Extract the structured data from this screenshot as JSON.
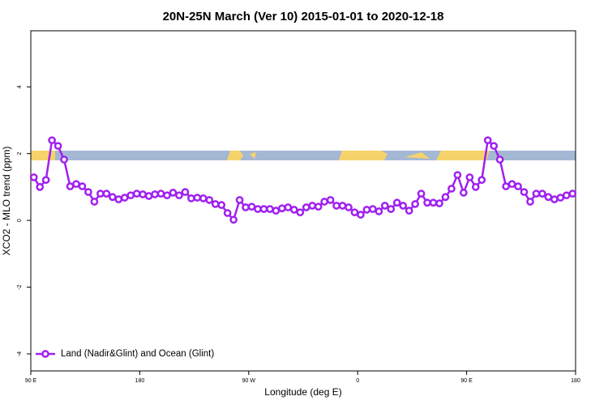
{
  "chart_data": {
    "type": "line",
    "title": "20N-25N March (Ver 10)   2015-01-01 to 2020-12-18",
    "x_label": "Longitude (deg E)",
    "y_label": "XCO2 - MLO trend (ppm)",
    "xlim": [
      90,
      540
    ],
    "xticks": [
      {
        "value": 90,
        "label": "90 E"
      },
      {
        "value": 180,
        "label": "180"
      },
      {
        "value": 270,
        "label": "90 W"
      },
      {
        "value": 360,
        "label": "0"
      },
      {
        "value": 450,
        "label": "90 E"
      },
      {
        "value": 540,
        "label": "180"
      }
    ],
    "ylim": [
      -4.51,
      5.68
    ],
    "yticks": [
      -4,
      -2,
      0,
      2,
      4
    ],
    "legend_position": "bottom-left",
    "x": [
      92.5,
      97.5,
      102.5,
      107.5,
      112.5,
      117.5,
      122.5,
      127.5,
      132.5,
      137.5,
      142.5,
      147.5,
      152.5,
      157.5,
      162.5,
      167.5,
      172.5,
      177.5,
      182.5,
      187.5,
      192.5,
      197.5,
      202.5,
      207.5,
      212.5,
      217.5,
      222.5,
      227.5,
      232.5,
      237.5,
      242.5,
      247.5,
      252.5,
      257.5,
      262.5,
      267.5,
      272.5,
      277.5,
      282.5,
      287.5,
      292.5,
      297.5,
      302.5,
      307.5,
      312.5,
      317.5,
      322.5,
      327.5,
      332.5,
      337.5,
      342.5,
      347.5,
      352.5,
      357.5,
      362.5,
      367.5,
      372.5,
      377.5,
      382.5,
      387.5,
      392.5,
      397.5,
      402.5,
      407.5,
      412.5,
      417.5,
      422.5,
      427.5,
      432.5,
      437.5,
      442.5,
      447.5,
      452.5,
      457.5,
      462.5,
      467.5,
      472.5,
      477.5,
      482.5,
      487.5,
      492.5,
      497.5,
      502.5,
      507.5,
      512.5,
      517.5,
      522.5,
      527.5,
      532.5,
      537.5
    ],
    "series": [
      {
        "name": "Land (Nadir&Glint) and Ocean (Glint)",
        "color": "#a020f0",
        "values": [
          1.29,
          1.0,
          1.21,
          2.4,
          2.23,
          1.82,
          1.02,
          1.09,
          1.02,
          0.85,
          0.56,
          0.8,
          0.8,
          0.7,
          0.63,
          0.68,
          0.75,
          0.8,
          0.78,
          0.73,
          0.78,
          0.8,
          0.75,
          0.83,
          0.75,
          0.85,
          0.66,
          0.68,
          0.66,
          0.61,
          0.49,
          0.46,
          0.22,
          0.02,
          0.61,
          0.39,
          0.41,
          0.34,
          0.34,
          0.34,
          0.29,
          0.36,
          0.39,
          0.32,
          0.24,
          0.39,
          0.44,
          0.41,
          0.56,
          0.61,
          0.44,
          0.44,
          0.39,
          0.24,
          0.17,
          0.32,
          0.34,
          0.27,
          0.44,
          0.34,
          0.53,
          0.44,
          0.29,
          0.49,
          0.8,
          0.53,
          0.53,
          0.51,
          0.7,
          0.95,
          1.36,
          0.83,
          1.29,
          1.0,
          1.21,
          2.4,
          2.23,
          1.82,
          1.02,
          1.09,
          1.02,
          0.85,
          0.56,
          0.8,
          0.8,
          0.7,
          0.63,
          0.68,
          0.75,
          0.8
        ]
      }
    ]
  }
}
